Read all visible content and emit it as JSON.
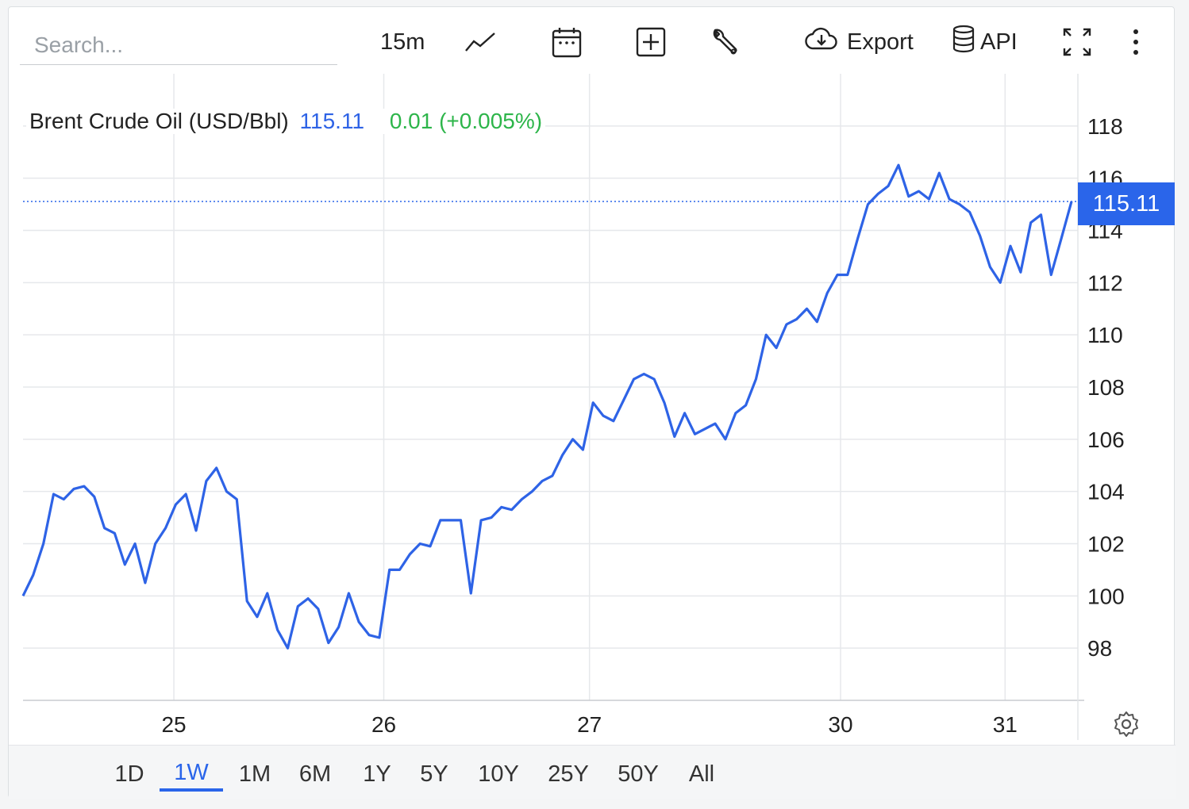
{
  "toolbar": {
    "search_placeholder": "Search...",
    "interval": "15m",
    "export_label": "Export",
    "api_label": "API",
    "icons": [
      "line-chart-icon",
      "calendar-icon",
      "plus-box-icon",
      "wrench-icon",
      "cloud-download-icon",
      "database-icon",
      "fullscreen-icon",
      "more-vertical-icon"
    ]
  },
  "legend": {
    "name": "Brent Crude Oil (USD/Bbl)",
    "price": "115.11",
    "change": "0.01 (+0.005%)"
  },
  "price_tag": "115.11",
  "ranges": [
    "1D",
    "1W",
    "1M",
    "6M",
    "1Y",
    "5Y",
    "10Y",
    "25Y",
    "50Y",
    "All"
  ],
  "active_range": "1W",
  "colors": {
    "line": "#2e63e6",
    "accent": "#2a65ea",
    "positive": "#2db54a",
    "grid": "#e6e8eb"
  },
  "chart_data": {
    "type": "line",
    "title": "Brent Crude Oil (USD/Bbl)",
    "x_ticks": [
      "25",
      "26",
      "27",
      "30",
      "31"
    ],
    "y_ticks": [
      98,
      100,
      102,
      104,
      106,
      108,
      110,
      112,
      114,
      116,
      118
    ],
    "ylim": [
      96,
      120
    ],
    "last_value": 115.11,
    "y_axis_side": "right",
    "grid": true,
    "series": [
      {
        "values": [
          100.0,
          100.8,
          102.0,
          103.9,
          103.7,
          104.1,
          104.2,
          103.8,
          102.6,
          102.4,
          101.2,
          102.0,
          100.5,
          102.0,
          102.6,
          103.5,
          103.9,
          102.5,
          104.4,
          104.9,
          104.0,
          103.7,
          99.8,
          99.2,
          100.1,
          98.7,
          98.0,
          99.6,
          99.9,
          99.5,
          98.2,
          98.8,
          100.1,
          99.0,
          98.5,
          98.4,
          101.0,
          101.0,
          101.6,
          102.0,
          101.9,
          102.9,
          102.9,
          102.9,
          100.1,
          102.9,
          103.0,
          103.4,
          103.3,
          103.7,
          104.0,
          104.4,
          104.6,
          105.4,
          106.0,
          105.6,
          107.4,
          106.9,
          106.7,
          107.5,
          108.3,
          108.5,
          108.3,
          107.4,
          106.1,
          107.0,
          106.2,
          106.4,
          106.6,
          106.0,
          107.0,
          107.3,
          108.3,
          110.0,
          109.5,
          110.4,
          110.6,
          111.0,
          110.5,
          111.6,
          112.3,
          112.3,
          113.7,
          115.0,
          115.4,
          115.7,
          116.5,
          115.3,
          115.5,
          115.2,
          116.2,
          115.2,
          115.0,
          114.7,
          113.8,
          112.6,
          112.0,
          113.4,
          112.4,
          114.3,
          114.6,
          112.3,
          113.7,
          115.11
        ]
      }
    ]
  }
}
